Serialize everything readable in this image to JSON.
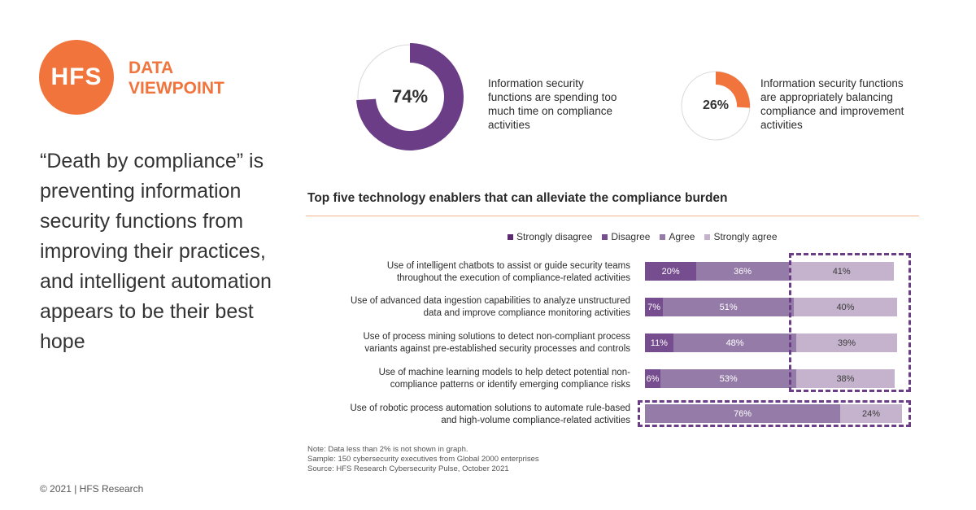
{
  "logo": {
    "text": "HFS",
    "brand_line1": "DATA",
    "brand_line2": "VIEWPOINT"
  },
  "headline": "“Death by compliance” is preventing information security functions from improving their practices, and intelligent automation appears to be their best hope",
  "copyright": "© 2021 | HFS Research",
  "colors": {
    "orange": "#F0743C",
    "strongly_disagree": "#5E2B73",
    "disagree": "#764D8E",
    "agree": "#957BA8",
    "strongly_agree": "#C5B3CE",
    "donut_purple": "#6C3D87",
    "dash": "#6C3D87"
  },
  "donuts": [
    {
      "value_label": "74%",
      "value": 74,
      "caption": "Information security functions are spending too much time on compliance activities",
      "color": "#6C3D87"
    },
    {
      "value_label": "26%",
      "value": 26,
      "caption": "Information security functions are appropriately balancing compliance and improvement activities",
      "color": "#F0743C"
    }
  ],
  "chart_data": {
    "type": "bar",
    "orientation": "horizontal",
    "stacked": true,
    "title": "Top five technology enablers that can alleviate the compliance burden",
    "legend_position": "top",
    "categories": [
      "Use of intelligent chatbots to assist or guide security teams throughout the execution of compliance-related activities",
      "Use of advanced data ingestion capabilities to analyze unstructured data and improve compliance monitoring activities",
      "Use of process mining solutions to detect non-compliant process variants against pre-established security processes and controls",
      "Use of machine learning models to help detect potential non-compliance patterns or identify emerging compliance risks",
      "Use of robotic process automation solutions to automate rule-based and high-volume compliance-related activities"
    ],
    "category_lines": [
      [
        "Use of intelligent chatbots to assist or guide security teams",
        "throughout the execution of compliance-related activities"
      ],
      [
        "Use of advanced data ingestion capabilities to analyze unstructured",
        "data and improve compliance monitoring activities"
      ],
      [
        "Use of process mining solutions to detect non-compliant process",
        "variants against pre-established security processes and controls"
      ],
      [
        "Use of machine learning models to help detect potential non-",
        "compliance patterns or identify emerging compliance risks"
      ],
      [
        "Use of robotic process automation solutions to automate rule-based",
        "and high-volume compliance-related activities"
      ]
    ],
    "series": [
      {
        "name": "Strongly disagree",
        "values": [
          0,
          0,
          0,
          0,
          0
        ],
        "labels": [
          "",
          "",
          "",
          "",
          ""
        ]
      },
      {
        "name": "Disagree",
        "values": [
          20,
          7,
          11,
          6,
          0
        ],
        "labels": [
          "20%",
          "7%",
          "11%",
          "6%",
          ""
        ]
      },
      {
        "name": "Agree",
        "values": [
          36,
          51,
          48,
          53,
          76
        ],
        "labels": [
          "36%",
          "51%",
          "48%",
          "53%",
          "76%"
        ]
      },
      {
        "name": "Strongly agree",
        "values": [
          41,
          40,
          39,
          38,
          24
        ],
        "labels": [
          "41%",
          "40%",
          "39%",
          "38%",
          "24%"
        ]
      }
    ],
    "xlim": [
      0,
      100
    ],
    "highlight_groups": [
      {
        "rows": [
          0,
          1,
          2,
          3
        ],
        "series": "Strongly agree"
      },
      {
        "rows": [
          4
        ],
        "series": "all"
      }
    ]
  },
  "notes": [
    "Note: Data less than 2% is not shown in graph.",
    "Sample: 150 cybersecurity executives from Global 2000 enterprises",
    "Source: HFS Research Cybersecurity Pulse, October 2021"
  ]
}
